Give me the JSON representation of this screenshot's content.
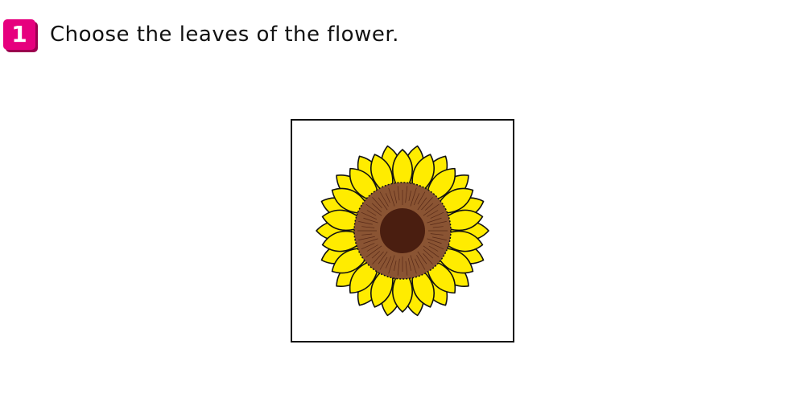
{
  "question": {
    "number": "1",
    "text": "Choose the leaves of the flower."
  },
  "image": {
    "subject": "sunflower",
    "colors": {
      "petal": "#ffec00",
      "outline": "#111111",
      "disc_outer": "#8a5433",
      "disc_inner": "#4a1e10",
      "badge": "#e6007e"
    }
  }
}
